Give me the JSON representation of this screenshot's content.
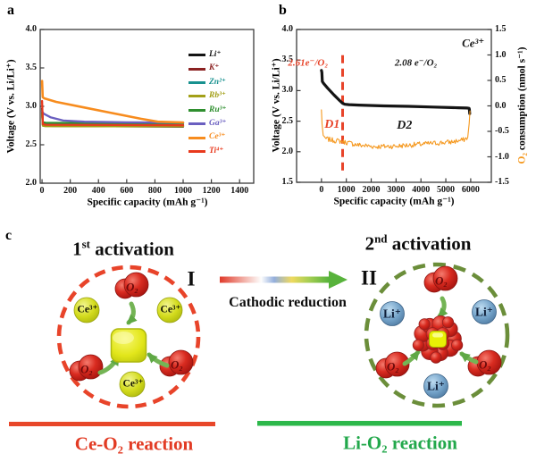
{
  "figure_labels": {
    "a": "a",
    "b": "b",
    "c": "c"
  },
  "chart_data": [
    {
      "id": "a",
      "type": "line",
      "xlabel": "Specific capacity (mAh g⁻¹)",
      "ylabel": "Voltage (V vs. Li/Li⁺)",
      "xlim": [
        -13,
        1500
      ],
      "ylim": [
        2.0,
        4.0
      ],
      "xticks": [
        [
          0,
          "0"
        ],
        [
          200,
          "200"
        ],
        [
          400,
          "400"
        ],
        [
          600,
          "600"
        ],
        [
          800,
          "800"
        ],
        [
          1000,
          "1000"
        ],
        [
          1200,
          "1200"
        ],
        [
          1400,
          "1400"
        ]
      ],
      "yticks": [
        [
          2.0,
          "2.0"
        ],
        [
          2.5,
          "2.5"
        ],
        [
          3.0,
          "3.0"
        ],
        [
          3.5,
          "3.5"
        ],
        [
          4.0,
          "4.0"
        ]
      ],
      "legend_position": "inside-right",
      "grid": false,
      "series": [
        {
          "name": "Li⁺",
          "color": "#141414",
          "lw": 2.3,
          "x": [
            0,
            6,
            25,
            80,
            1000
          ],
          "y": [
            2.97,
            2.757,
            2.748,
            2.744,
            2.736
          ]
        },
        {
          "name": "K⁺",
          "color": "#8B2222",
          "lw": 2.3,
          "x": [
            0,
            6,
            25,
            1000
          ],
          "y": [
            2.93,
            2.762,
            2.754,
            2.746
          ]
        },
        {
          "name": "Zn²⁺",
          "color": "#18918F",
          "lw": 2.3,
          "x": [
            0,
            6,
            25,
            1000
          ],
          "y": [
            2.95,
            2.778,
            2.77,
            2.763
          ]
        },
        {
          "name": "Rb³⁺",
          "color": "#A3A018",
          "lw": 2.3,
          "x": [
            0,
            6,
            25,
            1000
          ],
          "y": [
            2.9,
            2.748,
            2.742,
            2.739
          ]
        },
        {
          "name": "Ru³⁺",
          "color": "#2F8F2F",
          "lw": 2.3,
          "x": [
            0,
            6,
            25,
            1000
          ],
          "y": [
            2.94,
            2.792,
            2.786,
            2.782
          ]
        },
        {
          "name": "Ga³⁺",
          "color": "#6A5FC0",
          "lw": 2.3,
          "x": [
            0,
            12,
            60,
            150,
            300,
            600,
            1000
          ],
          "y": [
            2.935,
            2.905,
            2.858,
            2.815,
            2.8,
            2.792,
            2.788
          ]
        },
        {
          "name": "Ce³⁺",
          "color": "#F78C1E",
          "lw": 2.6,
          "x": [
            0,
            5,
            15,
            100,
            300,
            500,
            700,
            820,
            1000
          ],
          "y": [
            3.33,
            3.12,
            3.105,
            3.058,
            2.985,
            2.912,
            2.838,
            2.8,
            2.79
          ]
        },
        {
          "name": "Ti⁴⁺",
          "color": "#E8391D",
          "lw": 2.3,
          "x": [
            0,
            6,
            25,
            1000
          ],
          "y": [
            3.07,
            2.768,
            2.76,
            2.753
          ]
        }
      ]
    },
    {
      "id": "b",
      "type": "line",
      "xlabel": "Specific capacity (mAh g⁻¹)",
      "ylabel": "Voltage (V vs. Li/Li⁺)",
      "ylabel_right": {
        "o2": "O₂",
        "rest": " consumption (nmol s⁻¹)"
      },
      "xlim": [
        -1000,
        6830
      ],
      "ylim": [
        1.5,
        4.0
      ],
      "ylim_right": [
        -1.5,
        1.5
      ],
      "xticks": [
        [
          0,
          "0"
        ],
        [
          1000,
          "1000"
        ],
        [
          2000,
          "2000"
        ],
        [
          3000,
          "3000"
        ],
        [
          4000,
          "4000"
        ],
        [
          5000,
          "5000"
        ],
        [
          6000,
          "6000"
        ]
      ],
      "yticks": [
        [
          1.5,
          "1.5"
        ],
        [
          2.0,
          "2.0"
        ],
        [
          2.5,
          "2.5"
        ],
        [
          3.0,
          "3.0"
        ],
        [
          3.5,
          "3.5"
        ],
        [
          4.0,
          "4.0"
        ]
      ],
      "yticks_right": [
        [
          -1.5,
          "-1.5"
        ],
        [
          -1.0,
          "-1.0"
        ],
        [
          -0.5,
          "-0.5"
        ],
        [
          0.0,
          "0.0"
        ],
        [
          0.5,
          "0.5"
        ],
        [
          1.0,
          "1.0"
        ],
        [
          1.5,
          "1.5"
        ]
      ],
      "vline": {
        "x": 850,
        "y1": 3.58,
        "y2": 1.66,
        "color": "#E8442A"
      },
      "annotations": [
        {
          "text": "2.61e⁻/O₂",
          "x": -540,
          "y": 3.45,
          "color": "#E8442A",
          "size": 11
        },
        {
          "text": "2.08 e⁻/O₂",
          "x": 3800,
          "y": 3.44,
          "color": "#1a1a1a",
          "size": 11
        },
        {
          "text": "Ce³⁺",
          "x": 6100,
          "y": 3.78,
          "color": "#1a1a1a",
          "size": 13
        },
        {
          "text": "D1",
          "x": 430,
          "y": 2.43,
          "color": "#E8442A",
          "size": 14
        },
        {
          "text": "D2",
          "x": 3340,
          "y": 2.42,
          "color": "#1a1a1a",
          "size": 14
        }
      ],
      "series": [
        {
          "name": "voltage",
          "color": "#141414",
          "lw": 3.2,
          "x": [
            0,
            15,
            35,
            80,
            250,
            500,
            750,
            860,
            950,
            1100,
            1500,
            2500,
            3500,
            4500,
            5500,
            5850,
            5935,
            5945,
            5960
          ],
          "y": [
            3.33,
            3.3,
            3.15,
            3.12,
            3.04,
            2.93,
            2.83,
            2.79,
            2.776,
            2.77,
            2.763,
            2.75,
            2.742,
            2.731,
            2.72,
            2.715,
            2.71,
            2.695,
            2.625
          ]
        },
        {
          "name": "o2-consumption",
          "color": "#F5981E",
          "lw": 1.1,
          "axis": "right",
          "noise": 0.05,
          "x": [
            0,
            25,
            70,
            150,
            400,
            850,
            1500,
            2200,
            3000,
            3800,
            4600,
            5200,
            5700,
            5880,
            5940,
            5970
          ],
          "y": [
            -0.08,
            -0.35,
            -0.58,
            -0.64,
            -0.67,
            -0.7,
            -0.77,
            -0.8,
            -0.79,
            -0.76,
            -0.73,
            -0.71,
            -0.67,
            -0.62,
            -0.35,
            -0.1
          ]
        }
      ]
    }
  ],
  "diagram": {
    "title_first": {
      "num": "1",
      "ord": "st",
      "rest": " activation"
    },
    "title_second": {
      "num": "2",
      "ord": "nd",
      "rest": " activation"
    },
    "numeral_first": "I",
    "numeral_second": "II",
    "arrow_label": "Cathodic reduction",
    "caption_first": "Ce-O₂ reaction",
    "caption_second": "Li-O₂ reaction",
    "o2_label": "O₂",
    "ce_label": "Ce³⁺",
    "li_label": "Li⁺",
    "colors": {
      "dash_red": "#E8442A",
      "dash_green": "#6B8E3A",
      "line_red": "#E8472A",
      "line_green": "#2DB84B",
      "text_red": "#E23B24",
      "text_green": "#22A84B",
      "o2_orange": "#F5981E"
    }
  }
}
